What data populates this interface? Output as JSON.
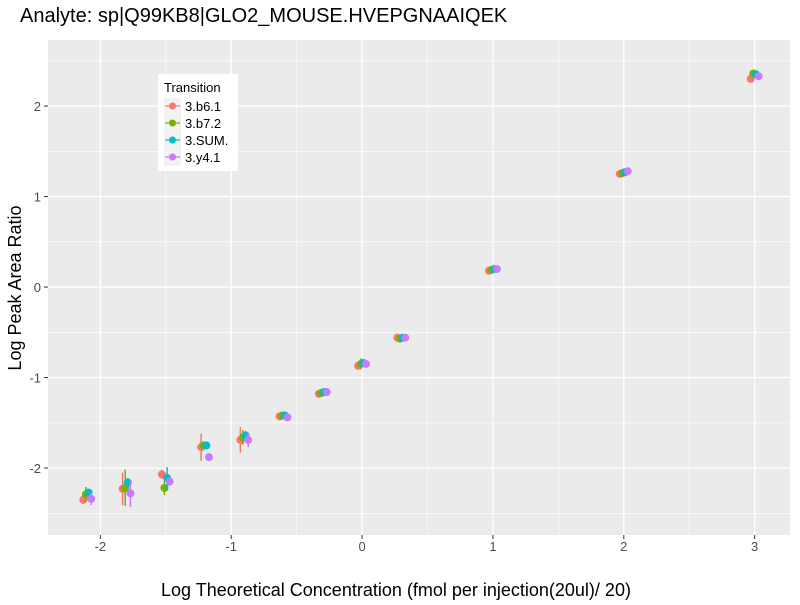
{
  "chart_data": {
    "type": "scatter",
    "title": "Analyte: sp|Q99KB8|GLO2_MOUSE.HVEPGNAAIQEK",
    "xlabel": "Log Theoretical Concentration (fmol per injection(20ul)/ 20)",
    "ylabel": "Log Peak Area Ratio",
    "xlim": [
      -2.4,
      3.27
    ],
    "ylim": [
      -2.74,
      2.73
    ],
    "xticks": [
      -2,
      -1,
      0,
      1,
      2,
      3
    ],
    "yticks": [
      -2,
      -1,
      0,
      1,
      2
    ],
    "grid": true,
    "legend": {
      "title": "Transition",
      "placement": "top-left"
    },
    "x": [
      -2.1,
      -1.8,
      -1.5,
      -1.2,
      -0.9,
      -0.6,
      -0.3,
      0,
      0.3,
      1,
      2,
      3
    ],
    "series": [
      {
        "name": "3.b6.1",
        "color": "#F8766D",
        "values": [
          -2.35,
          -2.23,
          -2.07,
          -1.77,
          -1.69,
          -1.43,
          -1.18,
          -0.87,
          -0.56,
          0.18,
          1.25,
          2.3
        ],
        "err": [
          0.05,
          0.18,
          0.05,
          0.15,
          0.14,
          0.03,
          0.02,
          0.02,
          0.02,
          0.02,
          0.02,
          0.03
        ]
      },
      {
        "name": "3.b7.2",
        "color": "#7CAE00",
        "values": [
          -2.29,
          -2.22,
          -2.22,
          -1.75,
          -1.66,
          -1.42,
          -1.17,
          -0.85,
          -0.57,
          0.19,
          1.26,
          2.36
        ],
        "err": [
          0.08,
          0.2,
          0.08,
          0.03,
          0.08,
          0.03,
          0.02,
          0.06,
          0.03,
          0.02,
          0.02,
          0.02
        ]
      },
      {
        "name": "3.SUM.",
        "color": "#00BFC4",
        "values": [
          -2.27,
          -2.16,
          -2.11,
          -1.75,
          -1.64,
          -1.42,
          -1.16,
          -0.84,
          -0.56,
          0.2,
          1.27,
          2.35
        ],
        "err": [
          0.03,
          0.05,
          0.12,
          0.02,
          0.05,
          0.03,
          0.02,
          0.02,
          0.02,
          0.02,
          0.02,
          0.02
        ]
      },
      {
        "name": "3.y4.1",
        "color": "#C77CFF",
        "values": [
          -2.34,
          -2.28,
          -2.15,
          -1.88,
          -1.69,
          -1.44,
          -1.16,
          -0.85,
          -0.56,
          0.2,
          1.28,
          2.33
        ],
        "err": [
          0.07,
          0.15,
          0.05,
          0.03,
          0.08,
          0.03,
          0.02,
          0.02,
          0.02,
          0.02,
          0.02,
          0.02
        ]
      }
    ]
  }
}
